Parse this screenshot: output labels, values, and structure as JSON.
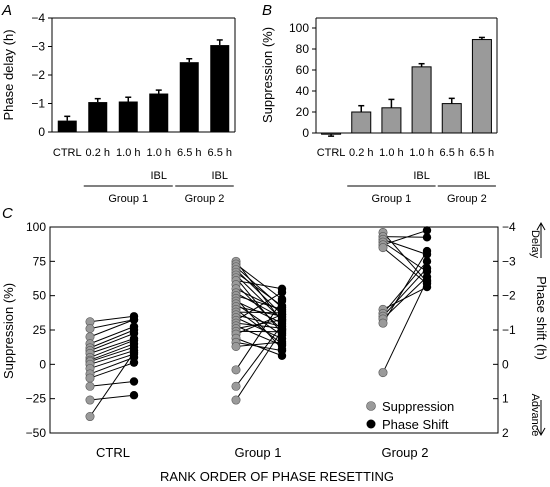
{
  "chart_data": [
    {
      "panel": "A",
      "type": "bar",
      "ylabel": "Phase delay (h)",
      "ylim": [
        0,
        -4
      ],
      "y_ticks": [
        "0",
        "−1",
        "−2",
        "−3",
        "−4"
      ],
      "categories": [
        "CTRL",
        "0.2 h",
        "1.0 h",
        "1.0 h",
        "6.5 h",
        "6.5 h"
      ],
      "values": [
        -0.4,
        -1.05,
        -1.07,
        -1.35,
        -2.45,
        -3.05
      ],
      "errors": [
        0.15,
        0.12,
        0.15,
        0.12,
        0.12,
        0.18
      ],
      "bar_color": "#000000",
      "groups": [
        {
          "label": "Group 1",
          "sublabel": "IBL",
          "sublabel_over": [
            3
          ],
          "span": [
            1,
            3
          ]
        },
        {
          "label": "Group 2",
          "sublabel": "IBL",
          "sublabel_over": [
            5
          ],
          "span": [
            4,
            5
          ]
        }
      ]
    },
    {
      "panel": "B",
      "type": "bar",
      "ylabel": "Suppression (%)",
      "ylim": [
        -10,
        100
      ],
      "y_ticks": [
        "0",
        "20",
        "40",
        "60",
        "80",
        "100"
      ],
      "categories": [
        "CTRL",
        "0.2 h",
        "1.0 h",
        "1.0 h",
        "6.5 h",
        "6.5 h"
      ],
      "values": [
        -1,
        20,
        24,
        63,
        28,
        89
      ],
      "errors": [
        2,
        6,
        8,
        3,
        5,
        2
      ],
      "bar_color": "#9a9a9a",
      "groups": [
        {
          "label": "Group 1",
          "sublabel": "IBL",
          "sublabel_over": [
            3
          ],
          "span": [
            1,
            3
          ]
        },
        {
          "label": "Group 2",
          "sublabel": "IBL",
          "sublabel_over": [
            5
          ],
          "span": [
            4,
            5
          ]
        }
      ]
    },
    {
      "panel": "C",
      "type": "scatter",
      "xlabel": "RANK ORDER OF PHASE RESETTING",
      "ylabel": "Suppression (%)",
      "ylabel_right": "Phase shift (h)",
      "ylim": [
        -50,
        100
      ],
      "y_ticks": [
        "−50",
        "−25",
        "0",
        "25",
        "50",
        "75",
        "100"
      ],
      "y_ticks_right": [
        "2",
        "1",
        "0",
        "−1",
        "−2",
        "−3",
        "−4"
      ],
      "right_axis_ylim": [
        2,
        -4
      ],
      "right_annotations": {
        "top": "Delay",
        "bottom": "Advance"
      },
      "categories": [
        "CTRL",
        "Group 1",
        "Group 2"
      ],
      "series": [
        {
          "name": "Suppression",
          "color": "#9a9a9a"
        },
        {
          "name": "Phase Shift",
          "color": "#000000"
        }
      ],
      "legend": "bottom-right",
      "paired_points": [
        {
          "group": "CTRL",
          "suppression": [
            31,
            26,
            20,
            15,
            12,
            10,
            8,
            5,
            3,
            2,
            0,
            -3,
            -7,
            -10,
            -16,
            -26,
            -38
          ],
          "phase_shift_h": [
            -1.4,
            -1.3,
            -1.3,
            -1.1,
            -1.0,
            -0.9,
            -0.75,
            -0.7,
            -0.6,
            -0.5,
            -0.4,
            -0.3,
            -0.2,
            -0.05,
            0.5,
            0.9,
            -0.35
          ]
        },
        {
          "group": "Group 1",
          "suppression": [
            75,
            73,
            71,
            69,
            67,
            65,
            63,
            61,
            58,
            55,
            52,
            50,
            48,
            46,
            44,
            42,
            40,
            38,
            36,
            34,
            32,
            30,
            28,
            26,
            24,
            22,
            19,
            16,
            13,
            -4,
            -16,
            -26
          ],
          "phase_shift_h": [
            -1.25,
            -1.9,
            -1.65,
            -1.45,
            -1.7,
            -1.3,
            -0.9,
            -2.2,
            -1.0,
            -1.55,
            -1.35,
            -1.6,
            -0.45,
            -1.2,
            -0.85,
            -1.4,
            -0.6,
            -1.5,
            -1.1,
            -0.75,
            -2.1,
            -1.05,
            -0.55,
            -1.3,
            -0.95,
            -1.45,
            -0.25,
            -0.4,
            -0.65,
            -1.85,
            -1.15,
            -1.0
          ]
        },
        {
          "group": "Group 2",
          "suppression": [
            96,
            93,
            91,
            89,
            87,
            85,
            40,
            37,
            35,
            33,
            30,
            -6
          ],
          "phase_shift_h": [
            -2.4,
            -3.7,
            -3.2,
            -2.7,
            -3.9,
            -2.35,
            -2.25,
            -3.0,
            -2.8,
            -2.55,
            -3.3,
            -2.45
          ]
        }
      ]
    }
  ]
}
